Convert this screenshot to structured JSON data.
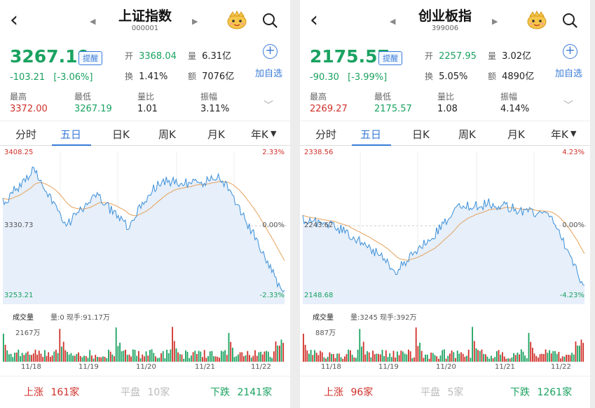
{
  "colors": {
    "up": "#d0302a",
    "down": "#1aa260",
    "accent": "#3b7bd8",
    "line": "#3b8fd8",
    "avg": "#e6a15c",
    "fill": "#e6effa"
  },
  "icons": {
    "back": "back-chevron-icon",
    "prev": "prev-triangle-icon",
    "next": "next-triangle-icon",
    "mascot": "mascot-icon",
    "search": "search-icon",
    "add": "plus-circle-icon",
    "expand": "chevron-down-icon"
  },
  "panels": [
    {
      "name": "上证指数",
      "code": "000001",
      "price": "3267.19",
      "alert": "提醒",
      "change": "-103.21",
      "change_pct": "[-3.06%]",
      "open_lbl": "开",
      "open": "3368.04",
      "vol_lbl": "量",
      "vol": "6.31亿",
      "turn_lbl": "换",
      "turn": "1.41%",
      "amt_lbl": "额",
      "amt": "7076亿",
      "add_label": "加自选",
      "stats": [
        {
          "label": "最高",
          "value": "3372.00",
          "color": "up"
        },
        {
          "label": "最低",
          "value": "3267.19",
          "color": "down"
        },
        {
          "label": "量比",
          "value": "1.01",
          "color": "neutral"
        },
        {
          "label": "振幅",
          "value": "3.11%",
          "color": "neutral"
        }
      ],
      "tabs": [
        "分时",
        "五日",
        "日K",
        "周K",
        "月K",
        "年K"
      ],
      "active_tab": 1,
      "y_top": "3408.25",
      "y_mid": "3330.73",
      "y_bot": "3253.21",
      "pct_top": "2.33%",
      "pct_mid": "0.00%",
      "pct_bot": "-2.33%",
      "vol_title": "成交量",
      "vol_info": "量:0 现手:91.17万",
      "vol_max": "2167万",
      "days": [
        "11/18",
        "11/19",
        "11/20",
        "11/21",
        "11/22"
      ],
      "rise_lbl": "上涨",
      "rise": "161家",
      "flat_lbl": "平盘",
      "flat": "10家",
      "fall_lbl": "下跌",
      "fall": "2141家"
    },
    {
      "name": "创业板指",
      "code": "399006",
      "price": "2175.57",
      "alert": "提醒",
      "change": "-90.30",
      "change_pct": "[-3.99%]",
      "open_lbl": "开",
      "open": "2257.95",
      "vol_lbl": "量",
      "vol": "3.02亿",
      "turn_lbl": "换",
      "turn": "5.05%",
      "amt_lbl": "额",
      "amt": "4890亿",
      "add_label": "加自选",
      "stats": [
        {
          "label": "最高",
          "value": "2269.27",
          "color": "up"
        },
        {
          "label": "最低",
          "value": "2175.57",
          "color": "down"
        },
        {
          "label": "量比",
          "value": "1.08",
          "color": "neutral"
        },
        {
          "label": "振幅",
          "value": "4.14%",
          "color": "neutral"
        }
      ],
      "tabs": [
        "分时",
        "五日",
        "日K",
        "周K",
        "月K",
        "年K"
      ],
      "active_tab": 1,
      "y_top": "2338.56",
      "y_mid": "2243.62",
      "y_bot": "2148.68",
      "pct_top": "4.23%",
      "pct_mid": "0.00%",
      "pct_bot": "-4.23%",
      "vol_title": "成交量",
      "vol_info": "量:3245 现手:392万",
      "vol_max": "887万",
      "days": [
        "11/18",
        "11/19",
        "11/20",
        "11/21",
        "11/22"
      ],
      "rise_lbl": "上涨",
      "rise": "96家",
      "flat_lbl": "平盘",
      "flat": "5家",
      "fall_lbl": "下跌",
      "fall": "1261家"
    }
  ]
}
